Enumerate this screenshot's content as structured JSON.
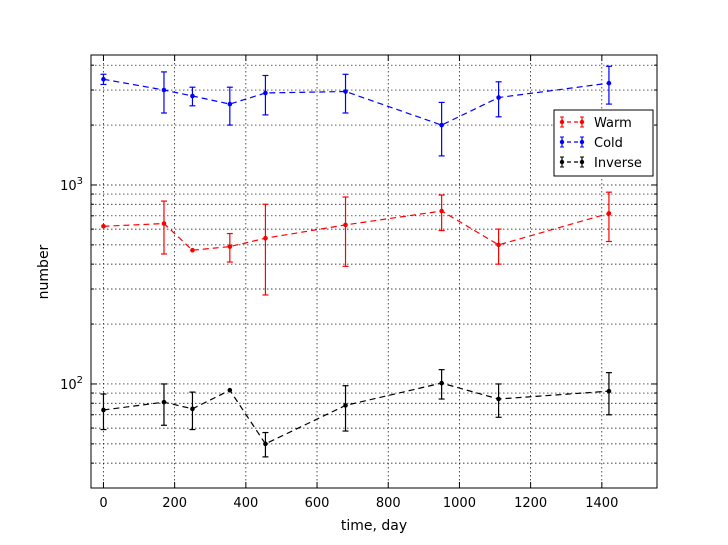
{
  "chart_data": {
    "type": "line",
    "xlabel": "time, day",
    "ylabel": "number",
    "xlim": [
      -35,
      1555
    ],
    "ylim": [
      30,
      4500
    ],
    "yscale": "log",
    "grid": true,
    "legend_placement": "right",
    "x_ticks": [
      0,
      200,
      400,
      600,
      800,
      1000,
      1200,
      1400
    ],
    "x_tick_labels": [
      "0",
      "200",
      "400",
      "600",
      "800",
      "1000",
      "1200",
      "1400"
    ],
    "y_ticks": [
      100,
      1000
    ],
    "y_tick_base": "10",
    "y_tick_exponents": [
      "2",
      "3"
    ],
    "series": [
      {
        "name": "Warm",
        "color": "#ff0000",
        "x": [
          0,
          170,
          250,
          355,
          455,
          680,
          950,
          1110,
          1420
        ],
        "y": [
          620,
          640,
          470,
          490,
          540,
          630,
          740,
          500,
          720
        ],
        "yerr": [
          0,
          190,
          0,
          80,
          260,
          240,
          150,
          100,
          200
        ]
      },
      {
        "name": "Cold",
        "color": "#0000ff",
        "x": [
          0,
          170,
          250,
          355,
          455,
          680,
          950,
          1110,
          1420
        ],
        "y": [
          3400,
          3000,
          2800,
          2550,
          2900,
          2950,
          2000,
          2750,
          3250
        ],
        "yerr": [
          200,
          700,
          300,
          550,
          650,
          650,
          600,
          550,
          700
        ]
      },
      {
        "name": "Inverse",
        "color": "#000000",
        "x": [
          0,
          170,
          250,
          355,
          455,
          680,
          950,
          1110,
          1420
        ],
        "y": [
          74,
          81,
          75,
          93,
          50,
          78,
          101,
          84,
          92
        ],
        "yerr": [
          15,
          19,
          16,
          0,
          7,
          20,
          17,
          16,
          22
        ]
      }
    ]
  }
}
